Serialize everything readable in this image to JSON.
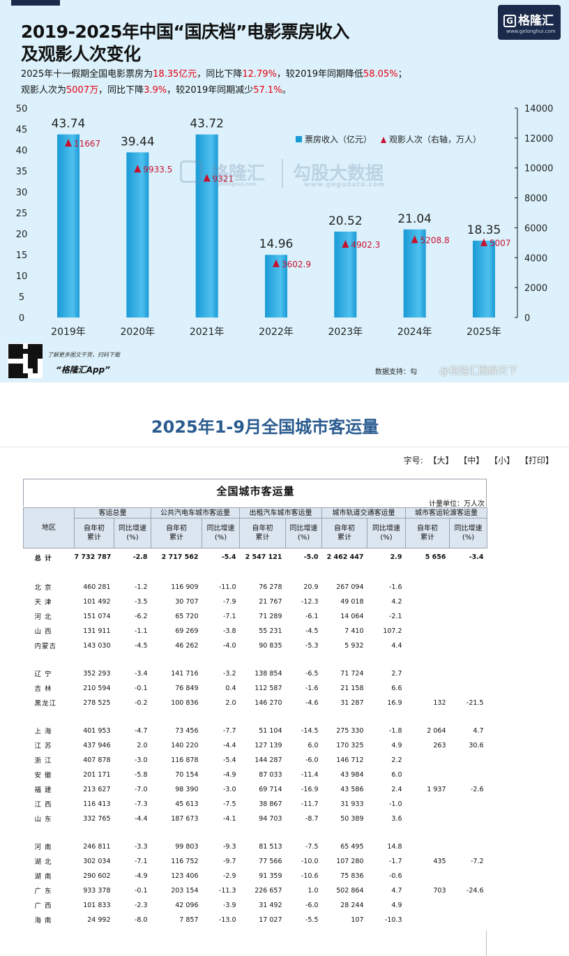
{
  "chart_card": {
    "title_line1": "2019-2025年中国“国庆档”电影票房收入",
    "title_line2": "及观影人次变化",
    "summary_line1": [
      {
        "t": "2025年十一假期全国电影票房为"
      },
      {
        "t": "18.35亿元",
        "hl": true
      },
      {
        "t": "，同比下降"
      },
      {
        "t": "12.79%",
        "hl": true
      },
      {
        "t": "，较2019年同期降低"
      },
      {
        "t": "58.05%",
        "hl": true
      },
      {
        "t": "；"
      }
    ],
    "summary_line2": [
      {
        "t": "观影人次为"
      },
      {
        "t": "5007万",
        "hl": true
      },
      {
        "t": "，同比下降"
      },
      {
        "t": "3.9%",
        "hl": true
      },
      {
        "t": "，较2019年同期减少"
      },
      {
        "t": "57.1%",
        "hl": true
      },
      {
        "t": "。"
      }
    ],
    "brand_name": "格隆汇",
    "brand_url": "www.gelonghui.com",
    "watermark_1": "格隆汇",
    "watermark_1_sub": "gelonghui.com",
    "watermark_2": "勾股大数据",
    "watermark_2_sub": "www.gogudata.com",
    "qr_caption": "了解更多图文干货，扫码下载",
    "qr_app": "“格隆汇App”",
    "data_support": "数据支持：勾",
    "weibo_mark": "@格隆汇图解天下",
    "colors": {
      "bar": "#1a9ad6",
      "bar_light": "#4fc0ee",
      "marker": "#c8102e",
      "highlight": "#e60012",
      "brand": "#1b2a4a"
    }
  },
  "chart_data": {
    "type": "bar",
    "categories": [
      "2019年",
      "2020年",
      "2021年",
      "2022年",
      "2023年",
      "2024年",
      "2025年"
    ],
    "series": [
      {
        "name": "票房收入（亿元）",
        "type": "bar",
        "axis": "left",
        "values": [
          43.74,
          39.44,
          43.72,
          14.96,
          20.52,
          21.04,
          18.35
        ],
        "labels": [
          "43.74",
          "39.44",
          "43.72",
          "14.96",
          "20.52",
          "21.04",
          "18.35"
        ]
      },
      {
        "name": "观影人次（右轴，万人）",
        "type": "scatter",
        "axis": "right",
        "marker": "triangle",
        "values": [
          11667,
          9933.5,
          9321,
          3602.9,
          4902.3,
          5208.8,
          5007
        ],
        "labels": [
          "11667",
          "9933.5",
          "9321",
          "3602.9",
          "4902.3",
          "5208.8",
          "5007"
        ]
      }
    ],
    "y_left": {
      "min": 0,
      "max": 50,
      "ticks": [
        "0",
        "5",
        "10",
        "15",
        "20",
        "25",
        "30",
        "35",
        "40",
        "45",
        "50"
      ]
    },
    "y_right": {
      "min": 0,
      "max": 14000,
      "ticks": [
        "0",
        "2000",
        "4000",
        "6000",
        "8000",
        "10000",
        "12000",
        "14000"
      ]
    },
    "legend": {
      "position": "top-right",
      "bar_label": "票房收入（亿元）",
      "marker_label": "观影人次（右轴，万人）"
    },
    "grid": false
  },
  "document": {
    "title": "2025年1-9月全国城市客运量",
    "fontsize_label": "字号:",
    "fontsize_options": [
      "【大】",
      "【中】",
      "【小】",
      "【打印】"
    ],
    "table_title": "全国城市客运量",
    "unit": "计量单位：万人次",
    "region_header": "地区",
    "groups": [
      "客运总量",
      "公共汽电车城市客运量",
      "出租汽车城市客运量",
      "城市轨道交通客运量",
      "城市客运轮渡客运量"
    ],
    "sub_cum": "自年初\n累计",
    "sub_yoy": "同比增速\n(%)",
    "rows": [
      {
        "region": "总  计",
        "total": true,
        "cells": [
          "7 732 787",
          "-2.8",
          "2 717 562",
          "-5.4",
          "2 547 121",
          "-5.0",
          "2 462 447",
          "2.9",
          "5 656",
          "-3.4"
        ]
      },
      {
        "gap": true
      },
      {
        "region": "北  京",
        "cells": [
          "460 281",
          "-1.2",
          "116 909",
          "-11.0",
          "76 278",
          "20.9",
          "267 094",
          "-1.6",
          "",
          ""
        ]
      },
      {
        "region": "天  津",
        "cells": [
          "101 492",
          "-3.5",
          "30 707",
          "-7.9",
          "21 767",
          "-12.3",
          "49 018",
          "4.2",
          "",
          ""
        ]
      },
      {
        "region": "河  北",
        "cells": [
          "151 074",
          "-6.2",
          "65 720",
          "-7.1",
          "71 289",
          "-6.1",
          "14 064",
          "-2.1",
          "",
          ""
        ]
      },
      {
        "region": "山  西",
        "cells": [
          "131 911",
          "-1.1",
          "69 269",
          "-3.8",
          "55 231",
          "-4.5",
          "7 410",
          "107.2",
          "",
          ""
        ]
      },
      {
        "region": "内蒙古",
        "cells": [
          "143 030",
          "-4.5",
          "46 262",
          "-4.0",
          "90 835",
          "-5.3",
          "5 932",
          "4.4",
          "",
          ""
        ]
      },
      {
        "gap": true
      },
      {
        "region": "辽  宁",
        "cells": [
          "352 293",
          "-3.4",
          "141 716",
          "-3.2",
          "138 854",
          "-6.5",
          "71 724",
          "2.7",
          "",
          ""
        ]
      },
      {
        "region": "吉  林",
        "cells": [
          "210 594",
          "-0.1",
          "76 849",
          "0.4",
          "112 587",
          "-1.6",
          "21 158",
          "6.6",
          "",
          ""
        ]
      },
      {
        "region": "黑龙江",
        "cells": [
          "278 525",
          "-0.2",
          "100 836",
          "2.0",
          "146 270",
          "-4.6",
          "31 287",
          "16.9",
          "132",
          "-21.5"
        ]
      },
      {
        "gap": true
      },
      {
        "region": "上  海",
        "cells": [
          "401 953",
          "-4.7",
          "73 456",
          "-7.7",
          "51 104",
          "-14.5",
          "275 330",
          "-1.8",
          "2 064",
          "4.7"
        ]
      },
      {
        "region": "江  苏",
        "cells": [
          "437 946",
          "2.0",
          "140 220",
          "-4.4",
          "127 139",
          "6.0",
          "170 325",
          "4.9",
          "263",
          "30.6"
        ]
      },
      {
        "region": "浙  江",
        "cells": [
          "407 878",
          "-3.0",
          "116 878",
          "-5.4",
          "144 287",
          "-6.0",
          "146 712",
          "2.2",
          "",
          ""
        ]
      },
      {
        "region": "安  徽",
        "cells": [
          "201 171",
          "-5.8",
          "70 154",
          "-4.9",
          "87 033",
          "-11.4",
          "43 984",
          "6.0",
          "",
          ""
        ]
      },
      {
        "region": "福  建",
        "cells": [
          "213 627",
          "-7.0",
          "98 390",
          "-3.0",
          "69 714",
          "-16.9",
          "43 586",
          "2.4",
          "1 937",
          "-2.6"
        ]
      },
      {
        "region": "江  西",
        "cells": [
          "116 413",
          "-7.3",
          "45 613",
          "-7.5",
          "38 867",
          "-11.7",
          "31 933",
          "-1.0",
          "",
          ""
        ]
      },
      {
        "region": "山  东",
        "cells": [
          "332 765",
          "-4.4",
          "187 673",
          "-4.1",
          "94 703",
          "-8.7",
          "50 389",
          "3.6",
          "",
          ""
        ]
      },
      {
        "gap": true
      },
      {
        "region": "河  南",
        "cells": [
          "246 811",
          "-3.3",
          "99 803",
          "-9.3",
          "81 513",
          "-7.5",
          "65 495",
          "14.8",
          "",
          ""
        ]
      },
      {
        "region": "湖  北",
        "cells": [
          "302 034",
          "-7.1",
          "116 752",
          "-9.7",
          "77 566",
          "-10.0",
          "107 280",
          "-1.7",
          "435",
          "-7.2"
        ]
      },
      {
        "region": "湖  南",
        "cells": [
          "290 602",
          "-4.9",
          "123 406",
          "-2.9",
          "91 359",
          "-10.6",
          "75 836",
          "-0.6",
          "",
          ""
        ]
      },
      {
        "region": "广  东",
        "cells": [
          "933 378",
          "-0.1",
          "203 154",
          "-11.3",
          "226 657",
          "1.0",
          "502 864",
          "4.7",
          "703",
          "-24.6"
        ]
      },
      {
        "region": "广  西",
        "cells": [
          "101 833",
          "-2.3",
          "42 096",
          "-3.9",
          "31 492",
          "-6.0",
          "28 244",
          "4.9",
          "",
          ""
        ]
      },
      {
        "region": "海  南",
        "cells": [
          "24 992",
          "-8.0",
          "7 857",
          "-13.0",
          "17 027",
          "-5.5",
          "107",
          "-10.3",
          "",
          ""
        ]
      }
    ]
  }
}
